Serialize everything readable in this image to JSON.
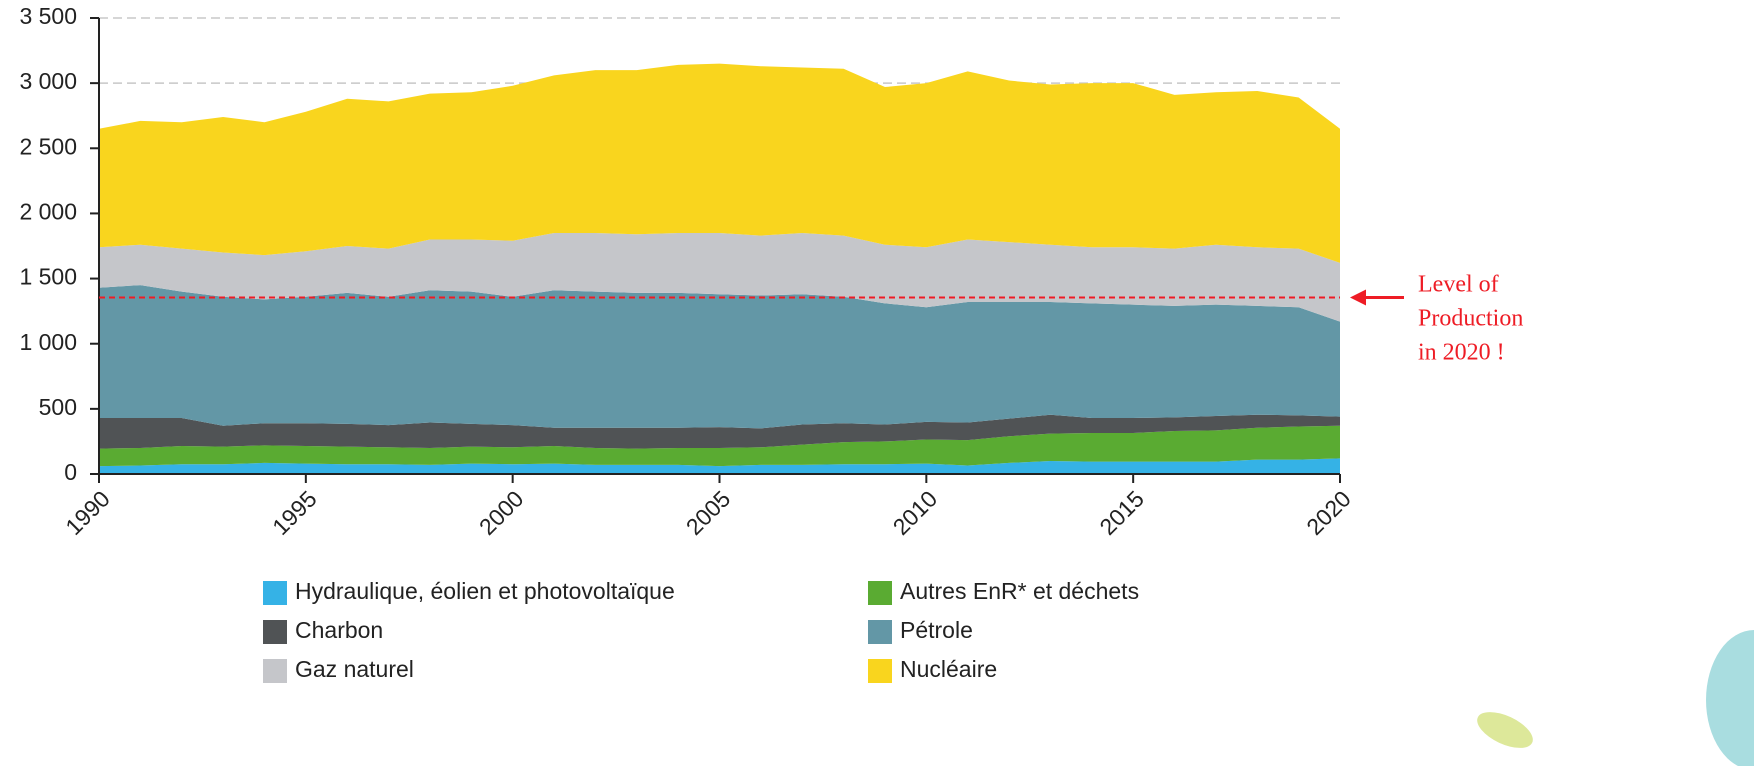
{
  "chart_data": {
    "type": "stacked-area",
    "x": [
      1990,
      1991,
      1992,
      1993,
      1994,
      1995,
      1996,
      1997,
      1998,
      1999,
      2000,
      2001,
      2002,
      2003,
      2004,
      2005,
      2006,
      2007,
      2008,
      2009,
      2010,
      2011,
      2012,
      2013,
      2014,
      2015,
      2016,
      2017,
      2018,
      2019,
      2020
    ],
    "xlim": [
      1990,
      2020
    ],
    "xticks": [
      1990,
      1995,
      2000,
      2005,
      2010,
      2015,
      2020
    ],
    "ylim": [
      0,
      3500
    ],
    "yticks": [
      0,
      500,
      {
        "value": 1000,
        "label": "1 000"
      },
      {
        "value": 1500,
        "label": "1 500"
      },
      {
        "value": 2000,
        "label": "2 000"
      },
      {
        "value": 2500,
        "label": "2 500"
      },
      {
        "value": 3000,
        "label": "3 000"
      },
      {
        "value": 3500,
        "label": "3 500"
      }
    ],
    "grid": true,
    "series": [
      {
        "name": "Hydraulique, éolien et photovoltaïque",
        "color": "#35b2e6",
        "values": [
          60,
          65,
          75,
          75,
          85,
          80,
          75,
          75,
          70,
          80,
          75,
          80,
          70,
          70,
          70,
          60,
          70,
          70,
          75,
          75,
          80,
          65,
          85,
          100,
          95,
          95,
          95,
          95,
          110,
          110,
          120
        ]
      },
      {
        "name": "Autres EnR* et déchets",
        "color": "#5aab32",
        "values": [
          135,
          135,
          140,
          135,
          135,
          135,
          135,
          130,
          130,
          130,
          130,
          135,
          130,
          125,
          130,
          140,
          135,
          155,
          170,
          175,
          185,
          195,
          205,
          210,
          220,
          220,
          235,
          240,
          245,
          255,
          250
        ]
      },
      {
        "name": "Charbon",
        "color": "#505355",
        "values": [
          235,
          230,
          215,
          160,
          170,
          175,
          175,
          170,
          195,
          175,
          170,
          140,
          155,
          160,
          155,
          160,
          145,
          155,
          145,
          130,
          135,
          135,
          135,
          145,
          115,
          115,
          105,
          110,
          100,
          85,
          70
        ]
      },
      {
        "name": "Pétrole",
        "color": "#6397a6",
        "values": [
          1000,
          1020,
          970,
          990,
          950,
          970,
          1005,
          985,
          1015,
          1015,
          985,
          1055,
          1045,
          1035,
          1035,
          1020,
          1020,
          1000,
          970,
          930,
          880,
          925,
          895,
          865,
          880,
          870,
          855,
          855,
          835,
          830,
          730
        ]
      },
      {
        "name": "Gaz naturel",
        "color": "#c5c6ca",
        "values": [
          310,
          310,
          330,
          340,
          340,
          350,
          360,
          370,
          390,
          400,
          430,
          440,
          450,
          450,
          460,
          470,
          460,
          470,
          470,
          450,
          460,
          480,
          460,
          440,
          430,
          440,
          440,
          460,
          450,
          450,
          450
        ]
      },
      {
        "name": "Nucléaire",
        "color": "#f9d51e",
        "values": [
          910,
          950,
          970,
          1040,
          1020,
          1070,
          1130,
          1130,
          1120,
          1130,
          1190,
          1210,
          1250,
          1260,
          1290,
          1300,
          1300,
          1270,
          1280,
          1210,
          1260,
          1290,
          1240,
          1230,
          1260,
          1260,
          1180,
          1170,
          1200,
          1160,
          1030
        ]
      }
    ],
    "annotation": {
      "value": 1355,
      "color": "#ee1c25",
      "lines": [
        "Level of",
        "Production",
        "in 2020 !"
      ]
    }
  }
}
